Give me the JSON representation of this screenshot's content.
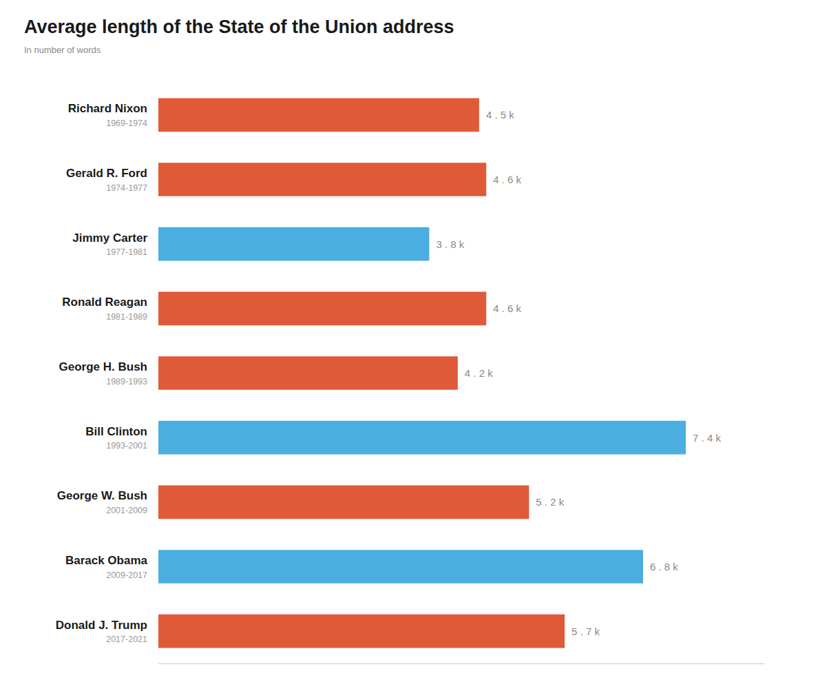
{
  "chart_data": {
    "type": "bar",
    "orientation": "horizontal",
    "title": "Average length of the State of the Union address",
    "subtitle": "In number of words",
    "categories": [
      "Richard Nixon",
      "Gerald R. Ford",
      "Jimmy Carter",
      "Ronald Reagan",
      "George H. Bush",
      "Bill Clinton",
      "George W. Bush",
      "Barack Obama",
      "Donald J. Trump"
    ],
    "years": [
      "1969-1974",
      "1974-1977",
      "1977-1981",
      "1981-1989",
      "1989-1993",
      "1993-2001",
      "2001-2009",
      "2009-2017",
      "2017-2021"
    ],
    "values": [
      4500,
      4600,
      3800,
      4600,
      4200,
      7400,
      5200,
      6800,
      5700
    ],
    "value_labels": [
      "4 . 5 k",
      "4 . 6 k",
      "3 . 8 k",
      "4 . 6 k",
      "4 . 2 k",
      "7 . 4 k",
      "5 . 2 k",
      "6 . 8 k",
      "5 . 7 k"
    ],
    "colors": [
      "#E05A38",
      "#E05A38",
      "#4AAEE0",
      "#E05A38",
      "#E05A38",
      "#4AAEE0",
      "#E05A38",
      "#4AAEE0",
      "#E05A38"
    ],
    "xlim": [
      0,
      8500
    ],
    "data_labels": true,
    "tick_labels": "y",
    "grid": false
  }
}
